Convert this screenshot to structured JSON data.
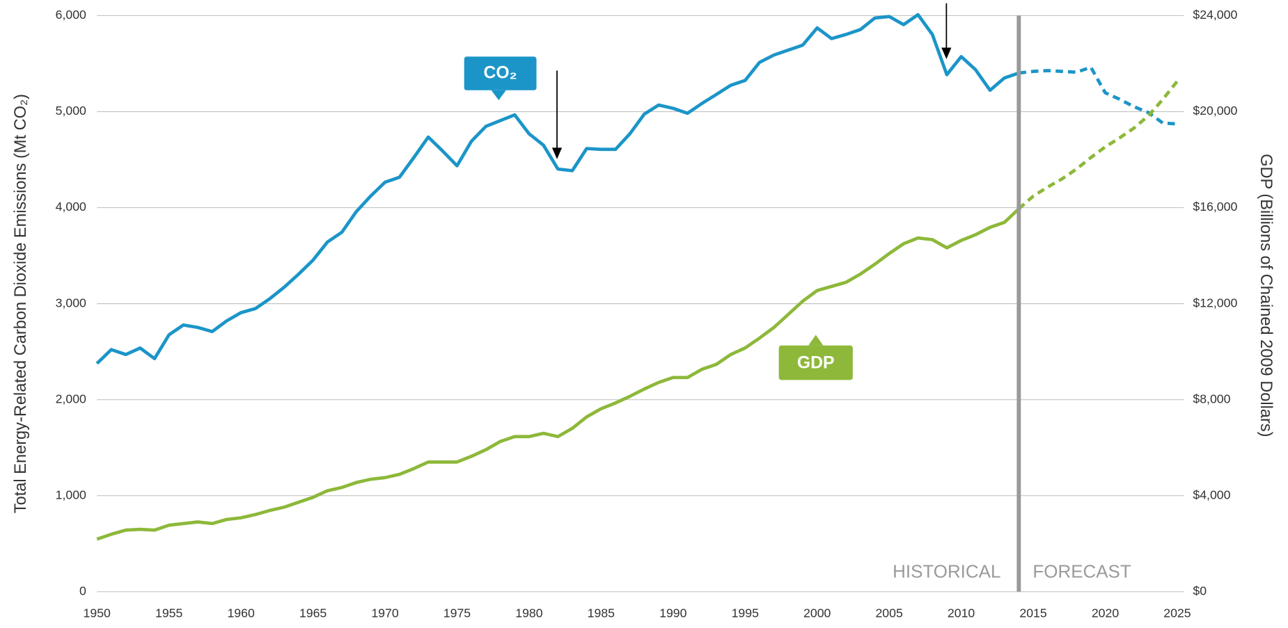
{
  "chart_data": {
    "type": "line",
    "y_label": "Total Energy-Related Carbon Dioxide Emissions (Mt CO₂)",
    "y2_label": "GDP (Billions of Chained 2009 Dollars)",
    "annotations": [
      "HISTORICAL",
      "FORECAST"
    ],
    "forecast_from": 2014,
    "x": [
      1950,
      1951,
      1952,
      1953,
      1954,
      1955,
      1956,
      1957,
      1958,
      1959,
      1960,
      1961,
      1962,
      1963,
      1964,
      1965,
      1966,
      1967,
      1968,
      1969,
      1970,
      1971,
      1972,
      1973,
      1974,
      1975,
      1976,
      1977,
      1978,
      1979,
      1980,
      1981,
      1982,
      1983,
      1984,
      1985,
      1986,
      1987,
      1988,
      1989,
      1990,
      1991,
      1992,
      1993,
      1994,
      1995,
      1996,
      1997,
      1998,
      1999,
      2000,
      2001,
      2002,
      2003,
      2004,
      2005,
      2006,
      2007,
      2008,
      2009,
      2010,
      2011,
      2012,
      2013,
      2014,
      2015,
      2016,
      2017,
      2018,
      2019,
      2020,
      2021,
      2022,
      2023,
      2024,
      2025
    ],
    "xlim": [
      1950,
      2025
    ],
    "xticks": [
      1950,
      1955,
      1960,
      1965,
      1970,
      1975,
      1980,
      1985,
      1990,
      1995,
      2000,
      2005,
      2010,
      2015,
      2020,
      2025
    ],
    "ylim": [
      0,
      6000
    ],
    "yticks": [
      0,
      {
        "value": 1000,
        "label": "1,000"
      },
      {
        "value": 2000,
        "label": "2,000"
      },
      {
        "value": 3000,
        "label": "3,000"
      },
      {
        "value": 4000,
        "label": "4,000"
      },
      {
        "value": 5000,
        "label": "5,000"
      },
      {
        "value": 6000,
        "label": "6,000"
      }
    ],
    "y2lim": [
      0,
      24000
    ],
    "y2ticks": [
      {
        "value": 0,
        "label": "$0"
      },
      {
        "value": 4000,
        "label": "$4,000"
      },
      {
        "value": 8000,
        "label": "$8,000"
      },
      {
        "value": 12000,
        "label": "$12,000"
      },
      {
        "value": 16000,
        "label": "$16,000"
      },
      {
        "value": 20000,
        "label": "$20,000"
      },
      {
        "value": 24000,
        "label": "$24,000"
      }
    ],
    "grid": true,
    "series": [
      {
        "name": "CO₂",
        "color": "#1b95c8",
        "axis": "y",
        "values": [
          2376,
          2521,
          2470,
          2538,
          2427,
          2675,
          2778,
          2752,
          2709,
          2820,
          2906,
          2949,
          3051,
          3171,
          3308,
          3453,
          3641,
          3744,
          3957,
          4120,
          4265,
          4316,
          4521,
          4735,
          4590,
          4436,
          4692,
          4846,
          4906,
          4966,
          4769,
          4650,
          4402,
          4385,
          4615,
          4607,
          4607,
          4769,
          4974,
          5068,
          5034,
          4983,
          5085,
          5179,
          5274,
          5325,
          5513,
          5590,
          5641,
          5692,
          5872,
          5761,
          5803,
          5855,
          5974,
          5991,
          5906,
          6009,
          5803,
          5385,
          5573,
          5436,
          5222,
          5350,
          5402,
          5419,
          5427,
          5419,
          5410,
          5462,
          5197,
          5128,
          5051,
          4991,
          4880,
          4872
        ]
      },
      {
        "name": "GDP",
        "color": "#8db83a",
        "axis": "y2",
        "values": [
          2188,
          2393,
          2564,
          2598,
          2564,
          2769,
          2838,
          2906,
          2838,
          3009,
          3077,
          3214,
          3385,
          3521,
          3726,
          3932,
          4205,
          4342,
          4547,
          4684,
          4752,
          4889,
          5128,
          5402,
          5402,
          5402,
          5641,
          5915,
          6256,
          6462,
          6462,
          6598,
          6462,
          6803,
          7282,
          7624,
          7863,
          8137,
          8444,
          8718,
          8923,
          8923,
          9265,
          9470,
          9880,
          10154,
          10564,
          11009,
          11556,
          12103,
          12547,
          12718,
          12889,
          13231,
          13641,
          14085,
          14496,
          14735,
          14667,
          14325,
          14632,
          14872,
          15180,
          15385,
          15950,
          16479,
          16855,
          17197,
          17607,
          18085,
          18530,
          18906,
          19316,
          19829,
          20513,
          21265
        ]
      }
    ]
  }
}
